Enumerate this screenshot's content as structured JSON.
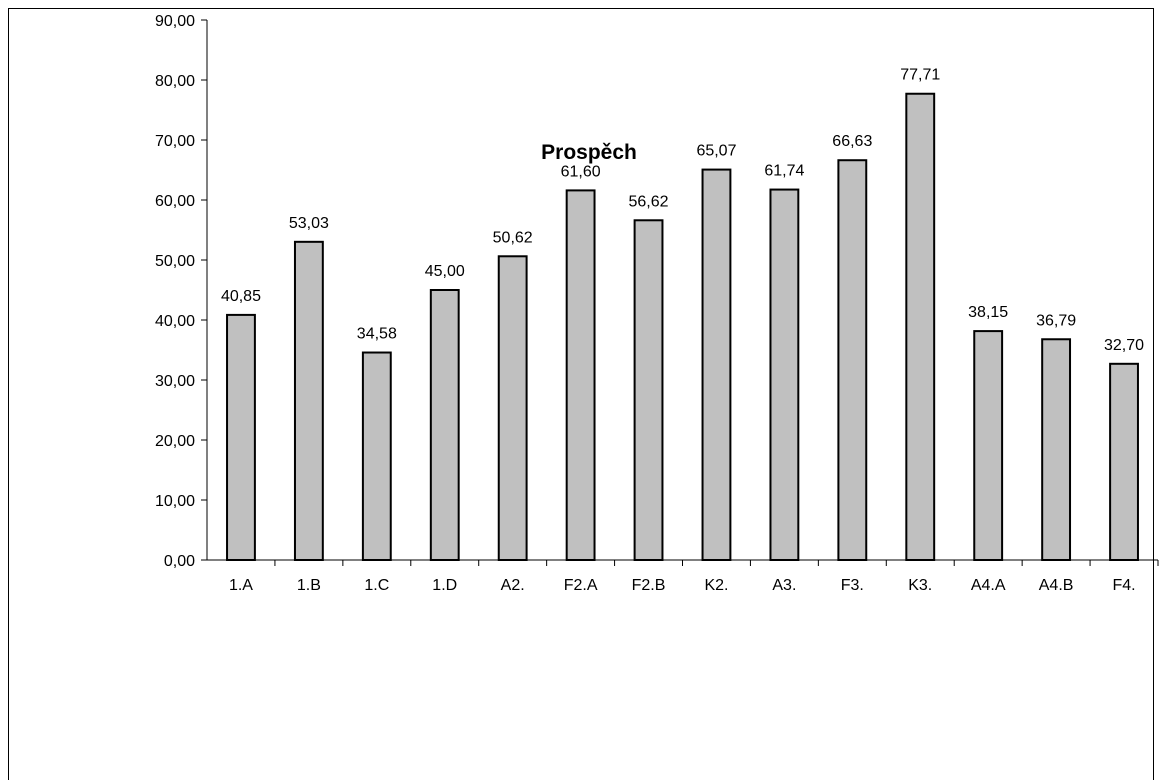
{
  "chart_data": {
    "type": "bar",
    "title": "Prospěch",
    "categories": [
      "1.A",
      "1.B",
      "1.C",
      "1.D",
      "A2.",
      "F2.A",
      "F2.B",
      "K2.",
      "A3.",
      "F3.",
      "K3.",
      "A4.A",
      "A4.B",
      "F4."
    ],
    "values": [
      40.85,
      53.03,
      34.58,
      45.0,
      50.62,
      61.6,
      56.62,
      65.07,
      61.74,
      66.63,
      77.71,
      38.15,
      36.79,
      32.7
    ],
    "data_labels": [
      "40,85",
      "53,03",
      "34,58",
      "45,00",
      "50,62",
      "61,60",
      "56,62",
      "65,07",
      "61,74",
      "66,63",
      "77,71",
      "38,15",
      "36,79",
      "32,70"
    ],
    "yticks": [
      0,
      10,
      20,
      30,
      40,
      50,
      60,
      70,
      80,
      90
    ],
    "ytick_labels": [
      "0,00",
      "10,00",
      "20,00",
      "30,00",
      "40,00",
      "50,00",
      "60,00",
      "70,00",
      "80,00",
      "90,00"
    ],
    "ylim": [
      0,
      90
    ],
    "xlabel": "",
    "ylabel": "",
    "grid": false,
    "legend": "none",
    "colors": {
      "bar_fill": "#c0c0c0",
      "bar_stroke": "#000000",
      "axis": "#000000"
    }
  }
}
